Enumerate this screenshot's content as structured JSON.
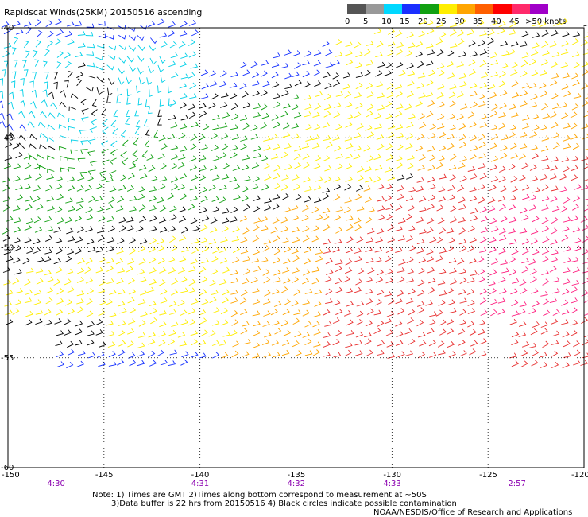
{
  "title": "Rapidscat Winds(25KM) 20150516 ascending",
  "legend": {
    "labels": [
      "0",
      "5",
      "10",
      "15",
      "20",
      "25",
      "30",
      "35",
      "40",
      "45",
      ">50 knots"
    ],
    "colors": [
      "#555555",
      "#999999",
      "#00d8ff",
      "#1a2fff",
      "#11a011",
      "#ffee00",
      "#ffa500",
      "#ff5f00",
      "#ff0000",
      "#ff2a6a",
      "#a000c8"
    ]
  },
  "axes": {
    "lon_labels": [
      "-150",
      "-145",
      "-140",
      "-135",
      "-130",
      "-125",
      "-120"
    ],
    "lat_labels": [
      "-40",
      "-45",
      "-50",
      "-55",
      "-60"
    ],
    "lon_range": [
      -150,
      -120
    ],
    "lat_range": [
      -40,
      -60
    ]
  },
  "times": [
    {
      "label": "4:30",
      "lon": -147.5
    },
    {
      "label": "4:31",
      "lon": -140
    },
    {
      "label": "4:32",
      "lon": -135
    },
    {
      "label": "4:33",
      "lon": -130
    },
    {
      "label": "2:57",
      "lon": -123.5
    }
  ],
  "notes": [
    "Note: 1) Times are GMT 2)Times along bottom correspond to measurement at ~50S",
    "3)Data buffer is 22 hrs from 20150516 4) Black circles indicate possible contamination",
    "NOAA/NESDIS/Office of Research and Applications"
  ],
  "wind_colors": {
    "lt5": "#000000",
    "c5": "#00d0e8",
    "c10": "#1430ff",
    "c15": "#10a010",
    "c20": "#ffee00",
    "c25": "#ffa500",
    "c30": "#e83030",
    "c35": "#ff2080"
  }
}
